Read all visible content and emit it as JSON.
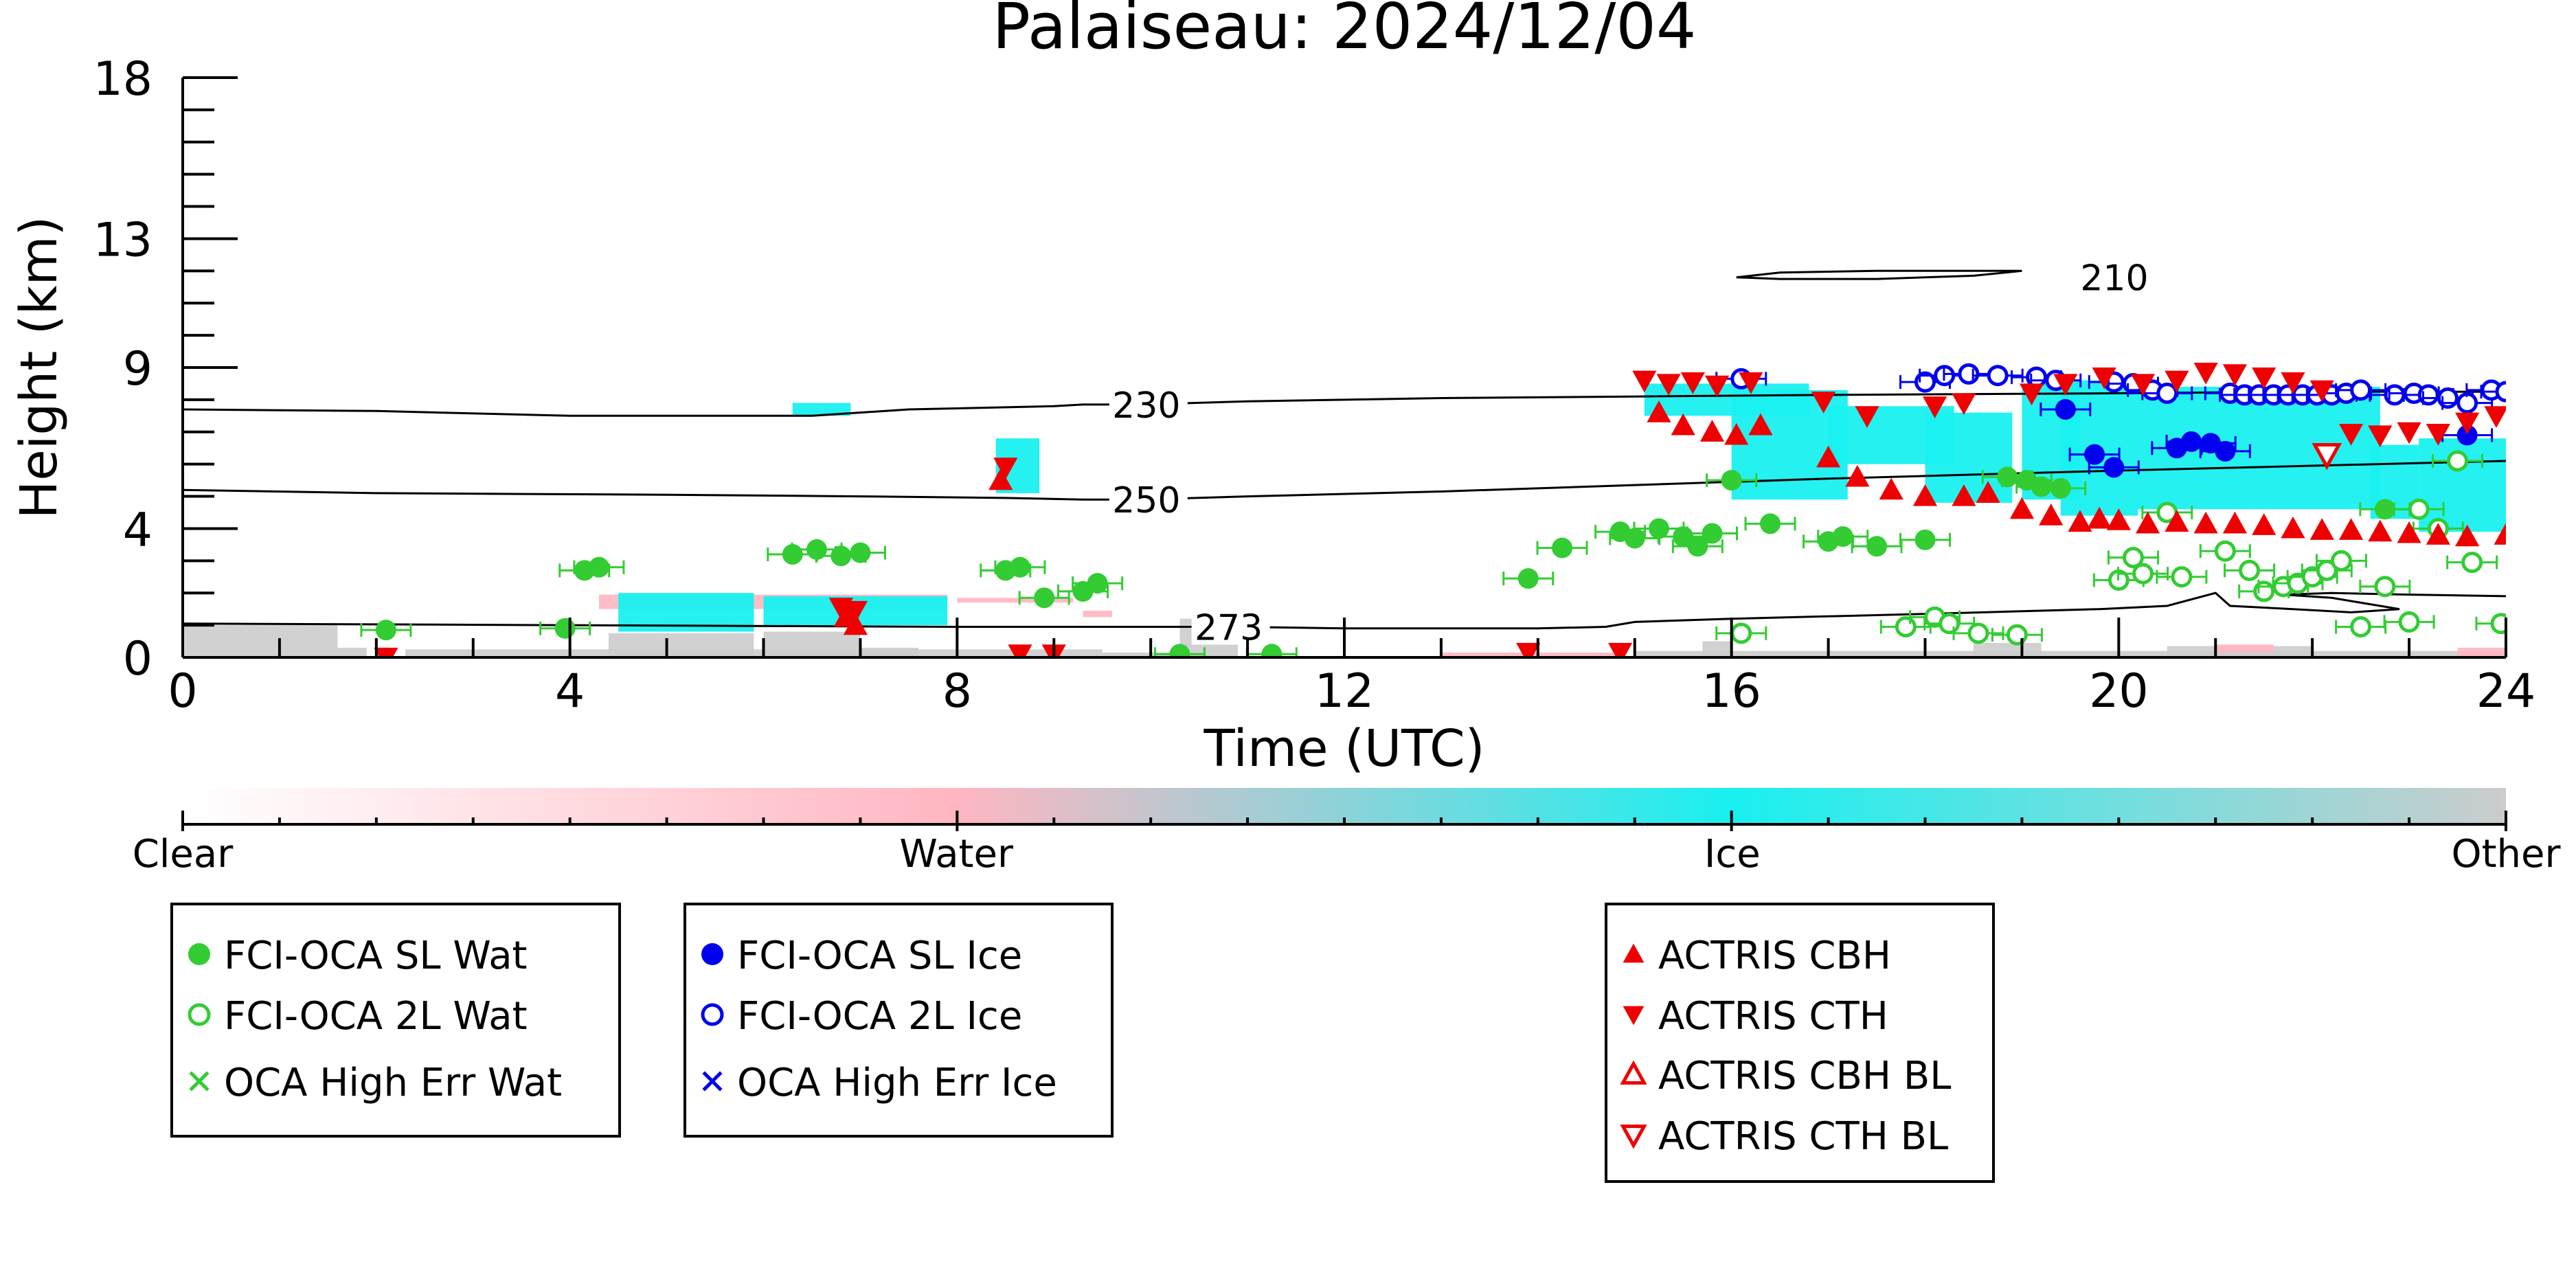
{
  "chart_data": {
    "type": "scatter",
    "title": "Palaiseau: 2024/12/04",
    "xlabel": "Time (UTC)",
    "ylabel": "Height (km)",
    "xlim": [
      0,
      24
    ],
    "ylim": [
      0,
      18
    ],
    "x_ticks": [
      "0",
      "4",
      "8",
      "12",
      "16",
      "20",
      "24"
    ],
    "x_tick_values": [
      0,
      4,
      8,
      12,
      16,
      20,
      24
    ],
    "y_ticks": [
      "0",
      "4",
      "9",
      "13",
      "18"
    ],
    "y_tick_values": [
      0,
      4,
      9,
      13,
      18
    ],
    "grid": false,
    "colors": {
      "water_sl": "#33cc33",
      "ice_sl": "#0000ee",
      "actris": "#ee0000",
      "ice_mask": "#19f0f0",
      "water_mask": "#ffb6c1",
      "other_mask": "#cccccc"
    },
    "colorbar": {
      "labels": [
        "Clear",
        "Water",
        "Ice",
        "Other"
      ],
      "positions": [
        0,
        0.333,
        0.667,
        1.0
      ],
      "stops": [
        {
          "pos": 0.0,
          "color": "#ffffff"
        },
        {
          "pos": 0.333,
          "color": "#ffb6c1"
        },
        {
          "pos": 0.667,
          "color": "#19f0f0"
        },
        {
          "pos": 1.0,
          "color": "#cccccc"
        }
      ]
    },
    "contours": [
      {
        "label": "210",
        "label_x": 19.6,
        "points": [
          [
            16.05,
            11.8
          ],
          [
            16.5,
            11.95
          ],
          [
            17.5,
            12.0
          ],
          [
            18.5,
            12.0
          ],
          [
            19.0,
            12.0
          ],
          [
            18.5,
            11.85
          ],
          [
            17.5,
            11.75
          ],
          [
            16.5,
            11.75
          ],
          [
            16.05,
            11.8
          ]
        ]
      },
      {
        "label": "230",
        "label_x": 9.6,
        "points": [
          [
            0,
            7.7
          ],
          [
            2,
            7.65
          ],
          [
            4,
            7.5
          ],
          [
            6.5,
            7.5
          ],
          [
            7.5,
            7.7
          ],
          [
            9,
            7.8
          ],
          [
            9.3,
            7.85
          ],
          [
            9.9,
            7.85
          ],
          [
            11,
            7.95
          ],
          [
            13,
            8.05
          ],
          [
            15,
            8.1
          ],
          [
            17,
            8.15
          ],
          [
            20,
            8.2
          ],
          [
            22,
            8.25
          ],
          [
            24,
            8.25
          ]
        ]
      },
      {
        "label": "250",
        "label_x": 9.6,
        "points": [
          [
            0,
            5.2
          ],
          [
            2,
            5.1
          ],
          [
            5,
            5.05
          ],
          [
            7,
            5.0
          ],
          [
            8.5,
            4.95
          ],
          [
            9.3,
            4.9
          ],
          [
            9.9,
            4.9
          ],
          [
            11,
            5.0
          ],
          [
            13,
            5.15
          ],
          [
            15,
            5.35
          ],
          [
            17,
            5.55
          ],
          [
            20,
            5.8
          ],
          [
            22,
            5.95
          ],
          [
            24,
            6.1
          ]
        ]
      },
      {
        "label": "273",
        "label_x": 10.45,
        "points": [
          [
            0,
            1.05
          ],
          [
            4,
            1.0
          ],
          [
            8,
            0.95
          ],
          [
            10.1,
            0.95
          ],
          [
            10.9,
            0.95
          ],
          [
            12,
            0.9
          ],
          [
            14,
            0.9
          ],
          [
            14.7,
            0.95
          ],
          [
            15,
            1.1
          ],
          [
            16,
            1.2
          ],
          [
            18,
            1.35
          ],
          [
            19.8,
            1.5
          ],
          [
            20.5,
            1.6
          ],
          [
            21,
            2.0
          ],
          [
            21.15,
            1.6
          ],
          [
            21.8,
            1.5
          ],
          [
            22.4,
            1.4
          ],
          [
            22.9,
            1.5
          ],
          [
            22.2,
            1.85
          ],
          [
            21.7,
            1.95
          ],
          [
            22.2,
            2.0
          ],
          [
            23,
            1.95
          ],
          [
            24,
            1.9
          ]
        ]
      }
    ],
    "mask_regions": [
      {
        "class": "Other",
        "rects": [
          [
            0,
            0,
            1.6,
            1.0
          ],
          [
            1.6,
            0,
            1.9,
            0.3
          ],
          [
            2.3,
            0,
            9.5,
            0.25
          ],
          [
            9.5,
            0,
            10.5,
            0.15
          ],
          [
            4.4,
            0,
            5.9,
            0.75
          ],
          [
            6.0,
            0,
            7.0,
            0.8
          ],
          [
            7.0,
            0,
            7.6,
            0.3
          ],
          [
            10.3,
            0,
            10.9,
            1.2
          ],
          [
            15.0,
            0,
            24,
            0.2
          ],
          [
            15.7,
            0,
            16.0,
            0.5
          ],
          [
            18.5,
            0,
            19.2,
            0.45
          ],
          [
            20.5,
            0,
            22.0,
            0.35
          ]
        ]
      },
      {
        "class": "Water",
        "rects": [
          [
            4.3,
            1.5,
            7.9,
            1.95
          ],
          [
            8.0,
            1.7,
            9.2,
            1.85
          ],
          [
            9.3,
            1.25,
            9.6,
            1.45
          ],
          [
            13.0,
            0,
            14.8,
            0.15
          ],
          [
            21.0,
            0.15,
            21.6,
            0.4
          ],
          [
            23.5,
            0,
            24,
            0.3
          ]
        ]
      },
      {
        "class": "Ice",
        "rects": [
          [
            6.3,
            7.5,
            6.9,
            7.9
          ],
          [
            8.4,
            5.1,
            8.85,
            6.8
          ],
          [
            4.5,
            0.8,
            5.9,
            2.0
          ],
          [
            6.0,
            1.0,
            7.9,
            1.9
          ],
          [
            15.1,
            7.5,
            16.8,
            8.5
          ],
          [
            16.0,
            4.9,
            17.2,
            8.3
          ],
          [
            17.0,
            6.0,
            18.3,
            7.8
          ],
          [
            18.0,
            4.8,
            18.9,
            7.6
          ],
          [
            19.0,
            4.9,
            19.6,
            8.5
          ],
          [
            19.4,
            4.4,
            20.2,
            8.6
          ],
          [
            20.2,
            4.6,
            22.7,
            8.4
          ],
          [
            22.6,
            4.3,
            23.1,
            6.6
          ],
          [
            23.1,
            3.9,
            24,
            6.8
          ]
        ]
      }
    ],
    "series": [
      {
        "name": "FCI-OCA SL Wat",
        "marker": "circle-filled",
        "color": "#33cc33",
        "points": [
          [
            2.1,
            0.85
          ],
          [
            3.95,
            0.9
          ],
          [
            4.15,
            2.7
          ],
          [
            4.3,
            2.8
          ],
          [
            6.3,
            3.2
          ],
          [
            6.55,
            3.35
          ],
          [
            6.8,
            3.15
          ],
          [
            7.0,
            3.25
          ],
          [
            8.5,
            2.7
          ],
          [
            8.65,
            2.8
          ],
          [
            8.9,
            1.85
          ],
          [
            9.3,
            2.05
          ],
          [
            9.45,
            2.3
          ],
          [
            10.3,
            0.1
          ],
          [
            11.25,
            0.1
          ],
          [
            13.9,
            2.45
          ],
          [
            14.25,
            3.4
          ],
          [
            14.85,
            3.9
          ],
          [
            15.0,
            3.7
          ],
          [
            15.25,
            4.0
          ],
          [
            15.5,
            3.75
          ],
          [
            15.65,
            3.45
          ],
          [
            15.8,
            3.85
          ],
          [
            16.0,
            5.5
          ],
          [
            16.4,
            4.15
          ],
          [
            17.0,
            3.6
          ],
          [
            17.15,
            3.75
          ],
          [
            17.5,
            3.45
          ],
          [
            18.0,
            3.65
          ],
          [
            18.85,
            5.6
          ],
          [
            19.05,
            5.5
          ],
          [
            19.2,
            5.3
          ],
          [
            19.4,
            5.25
          ],
          [
            22.75,
            4.6
          ]
        ]
      },
      {
        "name": "FCI-OCA 2L Wat",
        "marker": "circle-open",
        "color": "#33cc33",
        "points": [
          [
            16.1,
            0.75
          ],
          [
            17.8,
            0.95
          ],
          [
            18.1,
            1.25
          ],
          [
            18.25,
            1.05
          ],
          [
            18.55,
            0.75
          ],
          [
            18.95,
            0.7
          ],
          [
            20.0,
            2.4
          ],
          [
            20.15,
            3.1
          ],
          [
            20.25,
            2.6
          ],
          [
            20.5,
            4.5
          ],
          [
            20.65,
            2.5
          ],
          [
            21.1,
            3.3
          ],
          [
            21.35,
            2.7
          ],
          [
            21.5,
            2.05
          ],
          [
            21.7,
            2.2
          ],
          [
            21.85,
            2.3
          ],
          [
            22.0,
            2.5
          ],
          [
            22.15,
            2.7
          ],
          [
            22.3,
            3.0
          ],
          [
            22.5,
            0.95
          ],
          [
            22.75,
            2.2
          ],
          [
            23.0,
            1.1
          ],
          [
            23.1,
            4.6
          ],
          [
            23.3,
            4.0
          ],
          [
            23.5,
            6.1
          ],
          [
            23.65,
            2.95
          ],
          [
            23.95,
            1.05
          ]
        ]
      },
      {
        "name": "OCA High Err Wat",
        "marker": "x",
        "color": "#33cc33",
        "points": []
      },
      {
        "name": "FCI-OCA SL Ice",
        "marker": "circle-filled",
        "color": "#0000ee",
        "points": [
          [
            19.45,
            7.7
          ],
          [
            19.75,
            6.3
          ],
          [
            19.95,
            5.9
          ],
          [
            20.6,
            6.5
          ],
          [
            20.75,
            6.7
          ],
          [
            20.95,
            6.65
          ],
          [
            21.1,
            6.4
          ],
          [
            23.6,
            6.9
          ]
        ]
      },
      {
        "name": "FCI-OCA 2L Ice",
        "marker": "circle-open",
        "color": "#0000ee",
        "points": [
          [
            16.1,
            8.65
          ],
          [
            18.0,
            8.55
          ],
          [
            18.2,
            8.75
          ],
          [
            18.45,
            8.8
          ],
          [
            18.75,
            8.75
          ],
          [
            19.15,
            8.7
          ],
          [
            19.35,
            8.6
          ],
          [
            19.95,
            8.55
          ],
          [
            20.15,
            8.5
          ],
          [
            20.35,
            8.3
          ],
          [
            20.5,
            8.2
          ],
          [
            21.15,
            8.2
          ],
          [
            21.3,
            8.15
          ],
          [
            21.45,
            8.15
          ],
          [
            21.6,
            8.15
          ],
          [
            21.75,
            8.15
          ],
          [
            21.9,
            8.15
          ],
          [
            22.05,
            8.15
          ],
          [
            22.2,
            8.15
          ],
          [
            22.35,
            8.2
          ],
          [
            22.5,
            8.3
          ],
          [
            22.85,
            8.15
          ],
          [
            23.05,
            8.2
          ],
          [
            23.2,
            8.15
          ],
          [
            23.4,
            8.05
          ],
          [
            23.6,
            7.9
          ],
          [
            23.85,
            8.3
          ],
          [
            24.0,
            8.25
          ]
        ]
      },
      {
        "name": "OCA High Err Ice",
        "marker": "x",
        "color": "#0000ee",
        "points": []
      },
      {
        "name": "ACTRIS CBH",
        "marker": "triangle-up-filled",
        "color": "#ee0000",
        "points": [
          [
            6.85,
            1.25
          ],
          [
            6.95,
            1.0
          ],
          [
            8.45,
            5.5
          ],
          [
            15.25,
            7.6
          ],
          [
            15.5,
            7.2
          ],
          [
            15.8,
            7.0
          ],
          [
            16.05,
            6.9
          ],
          [
            16.3,
            7.2
          ],
          [
            17.0,
            6.2
          ],
          [
            17.3,
            5.6
          ],
          [
            17.65,
            5.2
          ],
          [
            18.0,
            5.0
          ],
          [
            18.4,
            5.0
          ],
          [
            18.65,
            5.1
          ],
          [
            19.0,
            4.6
          ],
          [
            19.3,
            4.4
          ],
          [
            19.6,
            4.2
          ],
          [
            19.8,
            4.3
          ],
          [
            20.0,
            4.25
          ],
          [
            20.3,
            4.15
          ],
          [
            20.6,
            4.2
          ],
          [
            20.9,
            4.15
          ],
          [
            21.2,
            4.15
          ],
          [
            21.5,
            4.1
          ],
          [
            21.8,
            4.0
          ],
          [
            22.1,
            3.95
          ],
          [
            22.4,
            3.95
          ],
          [
            22.7,
            3.9
          ],
          [
            23.0,
            3.85
          ],
          [
            23.3,
            3.8
          ],
          [
            23.6,
            3.75
          ],
          [
            24.0,
            3.8
          ]
        ]
      },
      {
        "name": "ACTRIS CTH",
        "marker": "triangle-down-filled",
        "color": "#ee0000",
        "points": [
          [
            2.1,
            0.0
          ],
          [
            6.8,
            1.55
          ],
          [
            6.95,
            1.45
          ],
          [
            8.5,
            5.9
          ],
          [
            8.65,
            0.1
          ],
          [
            9.0,
            0.1
          ],
          [
            13.9,
            0.15
          ],
          [
            14.85,
            0.15
          ],
          [
            15.1,
            8.6
          ],
          [
            15.35,
            8.5
          ],
          [
            15.6,
            8.55
          ],
          [
            15.85,
            8.45
          ],
          [
            16.2,
            8.55
          ],
          [
            16.95,
            7.95
          ],
          [
            17.4,
            7.5
          ],
          [
            18.1,
            7.8
          ],
          [
            18.4,
            7.9
          ],
          [
            19.1,
            8.2
          ],
          [
            19.45,
            8.5
          ],
          [
            19.85,
            8.7
          ],
          [
            20.25,
            8.5
          ],
          [
            20.6,
            8.6
          ],
          [
            20.9,
            8.85
          ],
          [
            21.2,
            8.8
          ],
          [
            21.5,
            8.7
          ],
          [
            21.8,
            8.55
          ],
          [
            22.1,
            8.3
          ],
          [
            22.4,
            6.95
          ],
          [
            22.7,
            6.9
          ],
          [
            23.0,
            7.0
          ],
          [
            23.3,
            6.95
          ],
          [
            23.6,
            7.3
          ],
          [
            23.9,
            7.5
          ]
        ]
      },
      {
        "name": "ACTRIS CBH BL",
        "marker": "triangle-up-open",
        "color": "#ee0000",
        "points": []
      },
      {
        "name": "ACTRIS CTH BL",
        "marker": "triangle-down-open",
        "color": "#ee0000",
        "points": [
          [
            22.15,
            6.3
          ]
        ]
      }
    ],
    "legends": [
      {
        "entries": [
          "FCI-OCA SL Wat",
          "FCI-OCA 2L Wat",
          "OCA High Err Wat"
        ]
      },
      {
        "entries": [
          "FCI-OCA SL Ice",
          "FCI-OCA 2L Ice",
          "OCA High Err Ice"
        ]
      },
      {
        "entries": [
          "ACTRIS CBH",
          "ACTRIS CTH",
          "ACTRIS CBH BL",
          "ACTRIS CTH BL"
        ]
      }
    ]
  }
}
